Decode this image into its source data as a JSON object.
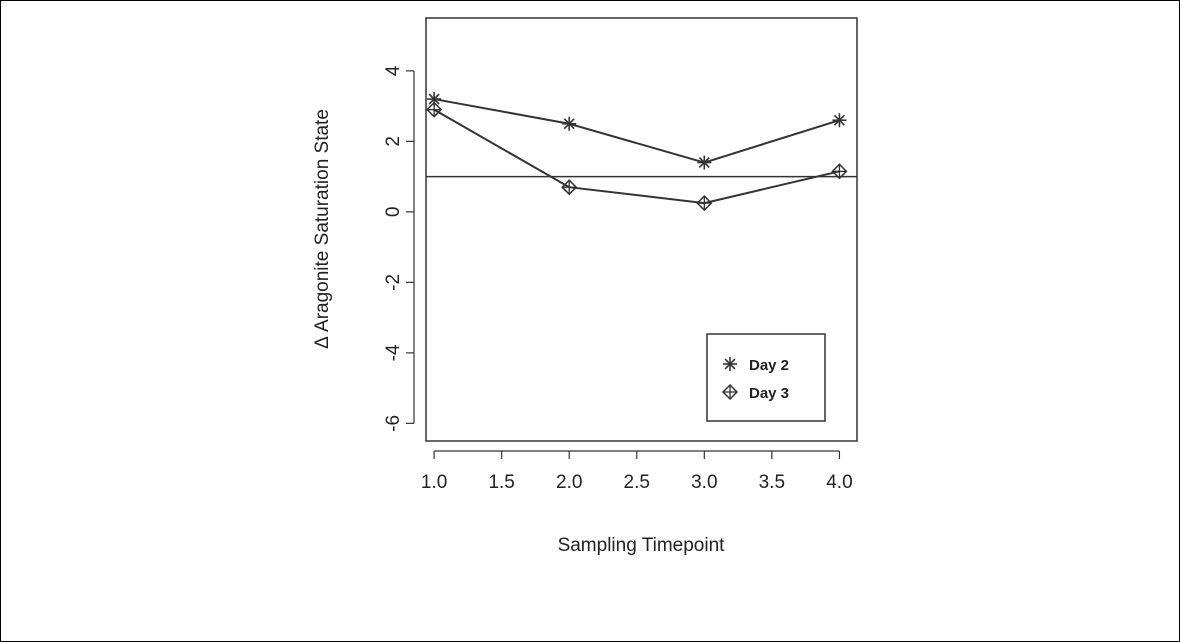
{
  "chart_data": {
    "type": "line",
    "title": "",
    "xlabel": "Sampling Timepoint",
    "ylabel": "Δ Aragonite Saturation State",
    "xlim": [
      0.94,
      4.13
    ],
    "ylim": [
      -6.5,
      5.5
    ],
    "x_ticks": [
      "1.0",
      "1.5",
      "2.0",
      "2.5",
      "3.0",
      "3.5",
      "4.0"
    ],
    "y_ticks": [
      "4",
      "2",
      "0",
      "-2",
      "-4",
      "-6"
    ],
    "x": [
      1.0,
      2.0,
      3.0,
      4.0
    ],
    "series": [
      {
        "name": "Day 2",
        "marker": "asterisk",
        "values": [
          3.2,
          2.5,
          1.4,
          2.6
        ]
      },
      {
        "name": "Day 3",
        "marker": "diamond-plus",
        "values": [
          2.9,
          0.7,
          0.25,
          1.15
        ]
      }
    ],
    "reference_line_y": 1.0,
    "legend_position": "bottom-right",
    "grid": false,
    "line_color": "#333333"
  }
}
